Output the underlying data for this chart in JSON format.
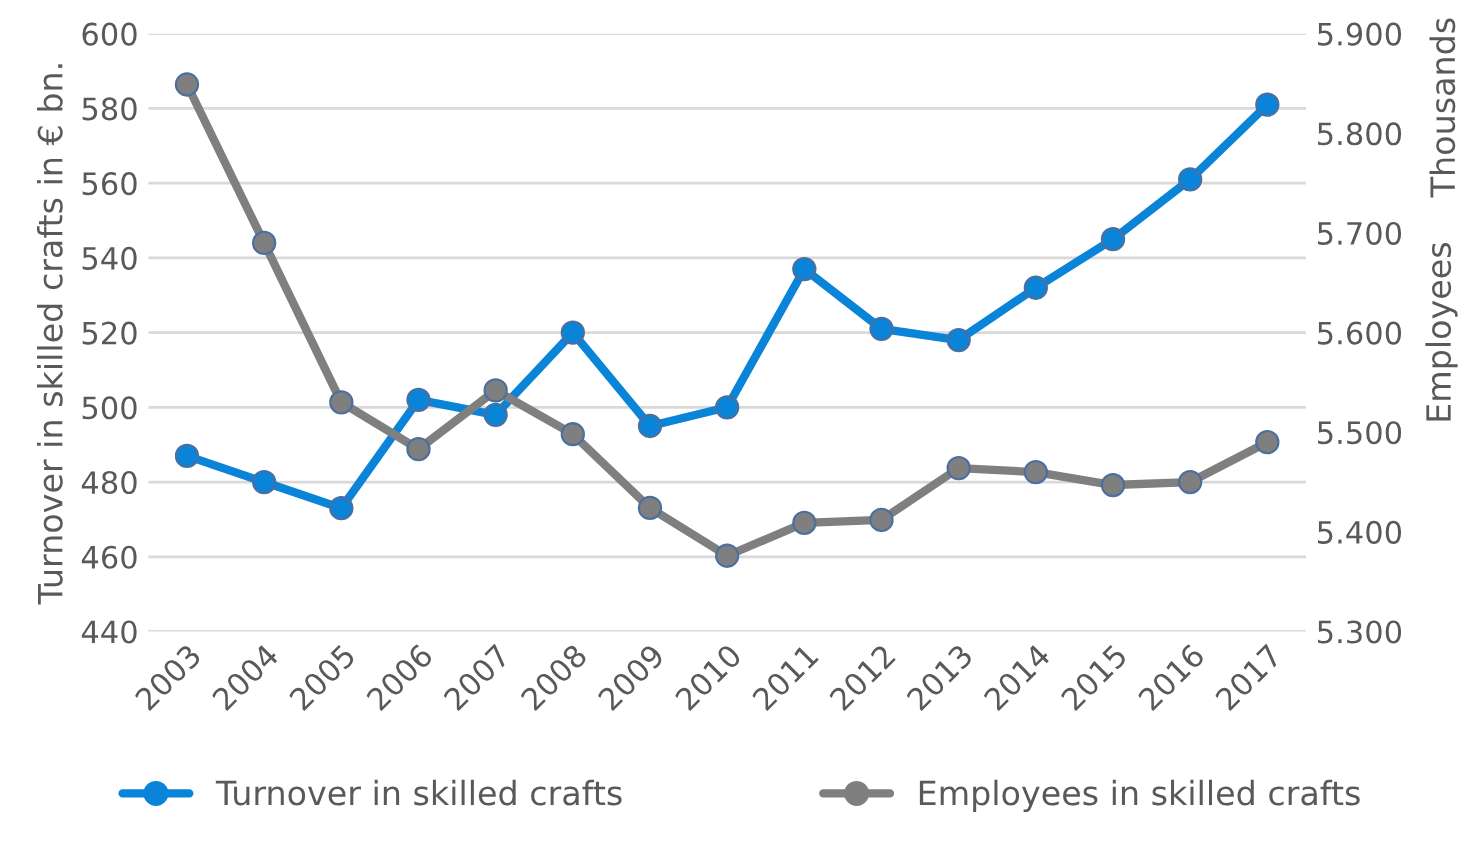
{
  "chart_data": {
    "type": "line",
    "categories": [
      "2003",
      "2004",
      "2005",
      "2006",
      "2007",
      "2008",
      "2009",
      "2010",
      "2011",
      "2012",
      "2013",
      "2014",
      "2015",
      "2016",
      "2017"
    ],
    "series": [
      {
        "name": "Turnover in skilled crafts",
        "color": "#0a84d8",
        "values": [
          487,
          480,
          473,
          502,
          498,
          520,
          495,
          500,
          537,
          521,
          518,
          532,
          545,
          561,
          581
        ]
      },
      {
        "name": "Employees in skilled crafts",
        "color": "#7f7f7f",
        "axis": "y2",
        "values": [
          5.849,
          5.69,
          5.53,
          5.483,
          5.542,
          5.498,
          5.424,
          5.376,
          5.409,
          5.412,
          5.464,
          5.46,
          5.447,
          5.45,
          5.49
        ]
      }
    ],
    "ylabel": "Turnover in skilled crafts in € bn.",
    "y2label": "Employees",
    "annotations": [
      "Thousands"
    ],
    "ylim": [
      440,
      600
    ],
    "yticks": [
      440,
      460,
      480,
      500,
      520,
      540,
      560,
      580,
      600
    ],
    "y2lim": [
      5.3,
      5.9
    ],
    "y2ticks": [
      {
        "value": 5.3,
        "label": "5.300"
      },
      {
        "value": 5.4,
        "label": "5.400"
      },
      {
        "value": 5.5,
        "label": "5.500"
      },
      {
        "value": 5.6,
        "label": "5.600"
      },
      {
        "value": 5.7,
        "label": "5.700"
      },
      {
        "value": 5.8,
        "label": "5.800"
      },
      {
        "value": 5.9,
        "label": "5.900"
      }
    ],
    "grid": "y",
    "legend": "bottom",
    "marker": "circle",
    "line_style": "solid"
  }
}
